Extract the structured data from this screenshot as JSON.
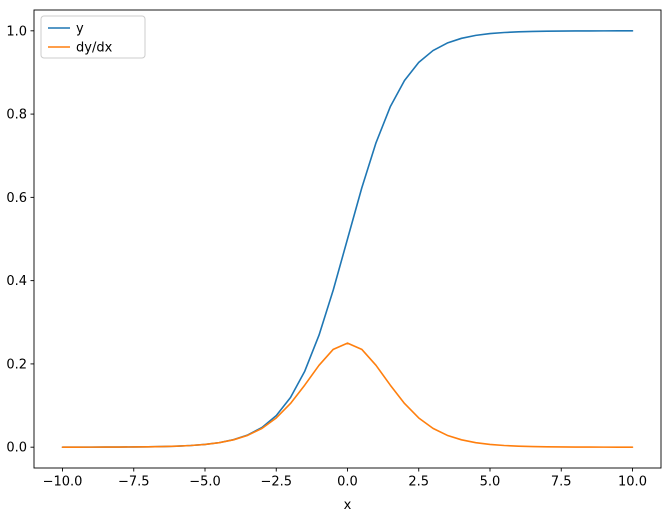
{
  "figure": {
    "background": "#ffffff",
    "spine_color": "#000000",
    "text_color": "#000000"
  },
  "chart_data": {
    "type": "line",
    "title": "",
    "xlabel": "x",
    "ylabel": "",
    "xlim": [
      -11,
      11
    ],
    "ylim": [
      -0.05,
      1.05
    ],
    "grid": false,
    "x_ticks": [
      -10.0,
      -7.5,
      -5.0,
      -2.5,
      0.0,
      2.5,
      5.0,
      7.5,
      10.0
    ],
    "x_tick_labels": [
      "−10.0",
      "−7.5",
      "−5.0",
      "−2.5",
      "0.0",
      "2.5",
      "5.0",
      "7.5",
      "10.0"
    ],
    "y_ticks": [
      0.0,
      0.2,
      0.4,
      0.6,
      0.8,
      1.0
    ],
    "y_tick_labels": [
      "0.0",
      "0.2",
      "0.4",
      "0.6",
      "0.8",
      "1.0"
    ],
    "legend": {
      "position": "upper-left",
      "border_color": "#cccccc",
      "entries": [
        {
          "label": "y",
          "color": "#1f77b4"
        },
        {
          "label": "dy/dx",
          "color": "#ff7f0e"
        }
      ]
    },
    "x": [
      -10,
      -9.5,
      -9,
      -8.5,
      -8,
      -7.5,
      -7,
      -6.5,
      -6,
      -5.5,
      -5,
      -4.5,
      -4,
      -3.5,
      -3,
      -2.5,
      -2,
      -1.5,
      -1,
      -0.5,
      0,
      0.5,
      1,
      1.5,
      2,
      2.5,
      3,
      3.5,
      4,
      4.5,
      5,
      5.5,
      6,
      6.5,
      7,
      7.5,
      8,
      8.5,
      9,
      9.5,
      10
    ],
    "series": [
      {
        "name": "y",
        "color": "#1f77b4",
        "values": [
          5e-05,
          7e-05,
          0.00012,
          0.0002,
          0.00034,
          0.00055,
          0.00091,
          0.0015,
          0.00247,
          0.00407,
          0.00669,
          0.01099,
          0.01799,
          0.02931,
          0.04743,
          0.07586,
          0.1192,
          0.18243,
          0.26894,
          0.37754,
          0.5,
          0.62246,
          0.73106,
          0.81757,
          0.8808,
          0.92414,
          0.95257,
          0.97069,
          0.98201,
          0.98901,
          0.99331,
          0.99593,
          0.99753,
          0.9985,
          0.99909,
          0.99945,
          0.99966,
          0.9998,
          0.99988,
          0.99993,
          0.99995
        ]
      },
      {
        "name": "dy/dx",
        "color": "#ff7f0e",
        "values": [
          5e-05,
          7e-05,
          0.00012,
          0.0002,
          0.00034,
          0.00055,
          0.00091,
          0.0015,
          0.00246,
          0.00405,
          0.00665,
          0.01087,
          0.01767,
          0.02845,
          0.04518,
          0.0701,
          0.10499,
          0.14915,
          0.19661,
          0.235,
          0.25,
          0.235,
          0.19661,
          0.14915,
          0.10499,
          0.0701,
          0.04518,
          0.02845,
          0.01767,
          0.01087,
          0.00665,
          0.00405,
          0.00246,
          0.0015,
          0.00091,
          0.00055,
          0.00034,
          0.0002,
          0.00012,
          7e-05,
          5e-05
        ]
      }
    ]
  }
}
